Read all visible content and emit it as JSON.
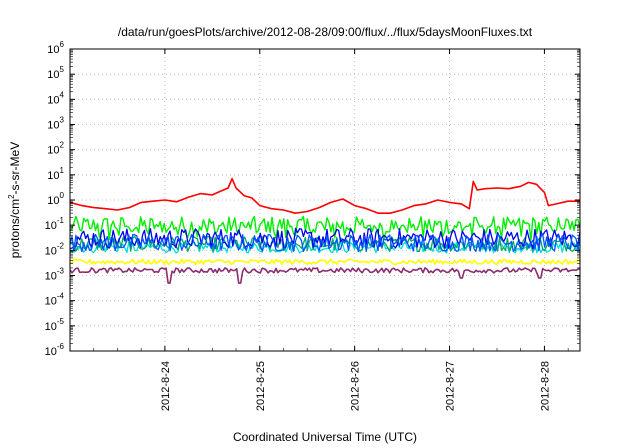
{
  "chart_data": {
    "type": "line",
    "title": "/data/run/goesPlots/archive/2012-08-28/09:00/flux/../flux/5daysMoonFluxes.txt",
    "xlabel": "Coordinated Universal Time (UTC)",
    "ylabel": "protons/cm2-s-sr-MeV",
    "ylabel_parts": {
      "pre": "protons/cm",
      "sup": "2",
      "post": "-s-sr-MeV"
    },
    "y_scale": "log",
    "ylim": [
      1e-06,
      1000000.0
    ],
    "xlim": [
      "2012-08-23T00:00",
      "2012-08-28T09:00"
    ],
    "grid": true,
    "legend": "none",
    "y_ticks": [
      {
        "value": 1e-06,
        "base": "10",
        "exp": "-6"
      },
      {
        "value": 1e-05,
        "base": "10",
        "exp": "-5"
      },
      {
        "value": 0.0001,
        "base": "10",
        "exp": "-4"
      },
      {
        "value": 0.001,
        "base": "10",
        "exp": "-3"
      },
      {
        "value": 0.01,
        "base": "10",
        "exp": "-2"
      },
      {
        "value": 0.1,
        "base": "10",
        "exp": "-1"
      },
      {
        "value": 1,
        "base": "10",
        "exp": "0"
      },
      {
        "value": 10.0,
        "base": "10",
        "exp": "1"
      },
      {
        "value": 100.0,
        "base": "10",
        "exp": "2"
      },
      {
        "value": 1000.0,
        "base": "10",
        "exp": "3"
      },
      {
        "value": 10000.0,
        "base": "10",
        "exp": "4"
      },
      {
        "value": 100000.0,
        "base": "10",
        "exp": "5"
      },
      {
        "value": 1000000.0,
        "base": "10",
        "exp": "6"
      }
    ],
    "x_ticks": [
      {
        "value": "2012-08-24T00:00",
        "label": "2012-8-24"
      },
      {
        "value": "2012-08-25T00:00",
        "label": "2012-8-25"
      },
      {
        "value": "2012-08-26T00:00",
        "label": "2012-8-26"
      },
      {
        "value": "2012-08-27T00:00",
        "label": "2012-8-27"
      },
      {
        "value": "2012-08-28T00:00",
        "label": "2012-8-28"
      }
    ],
    "series": [
      {
        "color": "#ff0000",
        "width": 1.6,
        "mode": "explicit",
        "points": [
          [
            "2012-08-23T00:00",
            0.8
          ],
          [
            "2012-08-23T03:00",
            0.6
          ],
          [
            "2012-08-23T06:00",
            0.5
          ],
          [
            "2012-08-23T09:00",
            0.45
          ],
          [
            "2012-08-23T12:00",
            0.4
          ],
          [
            "2012-08-23T15:00",
            0.5
          ],
          [
            "2012-08-23T18:00",
            0.8
          ],
          [
            "2012-08-23T21:00",
            0.9
          ],
          [
            "2012-08-24T00:00",
            1.0
          ],
          [
            "2012-08-24T03:00",
            0.85
          ],
          [
            "2012-08-24T06:00",
            1.3
          ],
          [
            "2012-08-24T09:00",
            1.8
          ],
          [
            "2012-08-24T12:00",
            1.6
          ],
          [
            "2012-08-24T14:00",
            2.2
          ],
          [
            "2012-08-24T16:00",
            3.0
          ],
          [
            "2012-08-24T17:00",
            7.0
          ],
          [
            "2012-08-24T18:00",
            3.0
          ],
          [
            "2012-08-24T20:00",
            1.5
          ],
          [
            "2012-08-24T22:00",
            1.2
          ],
          [
            "2012-08-25T00:00",
            0.6
          ],
          [
            "2012-08-25T03:00",
            0.45
          ],
          [
            "2012-08-25T06:00",
            0.4
          ],
          [
            "2012-08-25T09:00",
            0.3
          ],
          [
            "2012-08-25T12:00",
            0.35
          ],
          [
            "2012-08-25T15:00",
            0.5
          ],
          [
            "2012-08-25T18:00",
            0.8
          ],
          [
            "2012-08-25T21:00",
            1.1
          ],
          [
            "2012-08-26T00:00",
            0.6
          ],
          [
            "2012-08-26T03:00",
            0.45
          ],
          [
            "2012-08-26T06:00",
            0.3
          ],
          [
            "2012-08-26T09:00",
            0.3
          ],
          [
            "2012-08-26T12:00",
            0.4
          ],
          [
            "2012-08-26T15:00",
            0.6
          ],
          [
            "2012-08-26T18:00",
            0.7
          ],
          [
            "2012-08-26T21:00",
            1.0
          ],
          [
            "2012-08-27T00:00",
            0.8
          ],
          [
            "2012-08-27T03:00",
            0.7
          ],
          [
            "2012-08-27T05:00",
            0.45
          ],
          [
            "2012-08-27T06:00",
            5.5
          ],
          [
            "2012-08-27T07:00",
            2.5
          ],
          [
            "2012-08-27T09:00",
            2.8
          ],
          [
            "2012-08-27T12:00",
            3.0
          ],
          [
            "2012-08-27T15:00",
            2.8
          ],
          [
            "2012-08-27T18:00",
            3.5
          ],
          [
            "2012-08-27T20:00",
            5.0
          ],
          [
            "2012-08-27T22:00",
            4.2
          ],
          [
            "2012-08-28T00:00",
            2.0
          ],
          [
            "2012-08-28T01:00",
            0.6
          ],
          [
            "2012-08-28T03:00",
            0.7
          ],
          [
            "2012-08-28T06:00",
            0.9
          ],
          [
            "2012-08-28T09:00",
            0.9
          ]
        ]
      },
      {
        "color": "#00ee00",
        "width": 1.4,
        "mode": "noise",
        "base": 0.1,
        "spread": 0.35,
        "spikeEvery": 5,
        "spikeFactor": 0.3
      },
      {
        "color": "#00dddd",
        "width": 1.3,
        "mode": "noise",
        "base": 0.013,
        "spread": 0.22
      },
      {
        "color": "#00aa66",
        "width": 1.3,
        "mode": "noise",
        "base": 0.018,
        "spread": 0.3
      },
      {
        "color": "#0000ee",
        "width": 1.3,
        "mode": "noise",
        "base": 0.03,
        "spread": 0.4
      },
      {
        "color": "#0055ff",
        "width": 1.3,
        "mode": "noise",
        "base": 0.02,
        "spread": 0.35
      },
      {
        "color": "#ffff00",
        "width": 1.6,
        "mode": "noise",
        "base": 0.0035,
        "spread": 0.1
      },
      {
        "color": "#8b2c6e",
        "width": 1.6,
        "mode": "noise",
        "base": 0.0016,
        "spread": 0.1,
        "dips": [
          [
            "2012-08-24T01:00",
            0.0005
          ],
          [
            "2012-08-24T19:00",
            0.0005
          ],
          [
            "2012-08-27T03:00",
            0.0008
          ],
          [
            "2012-08-27T23:00",
            0.0008
          ]
        ]
      }
    ]
  }
}
